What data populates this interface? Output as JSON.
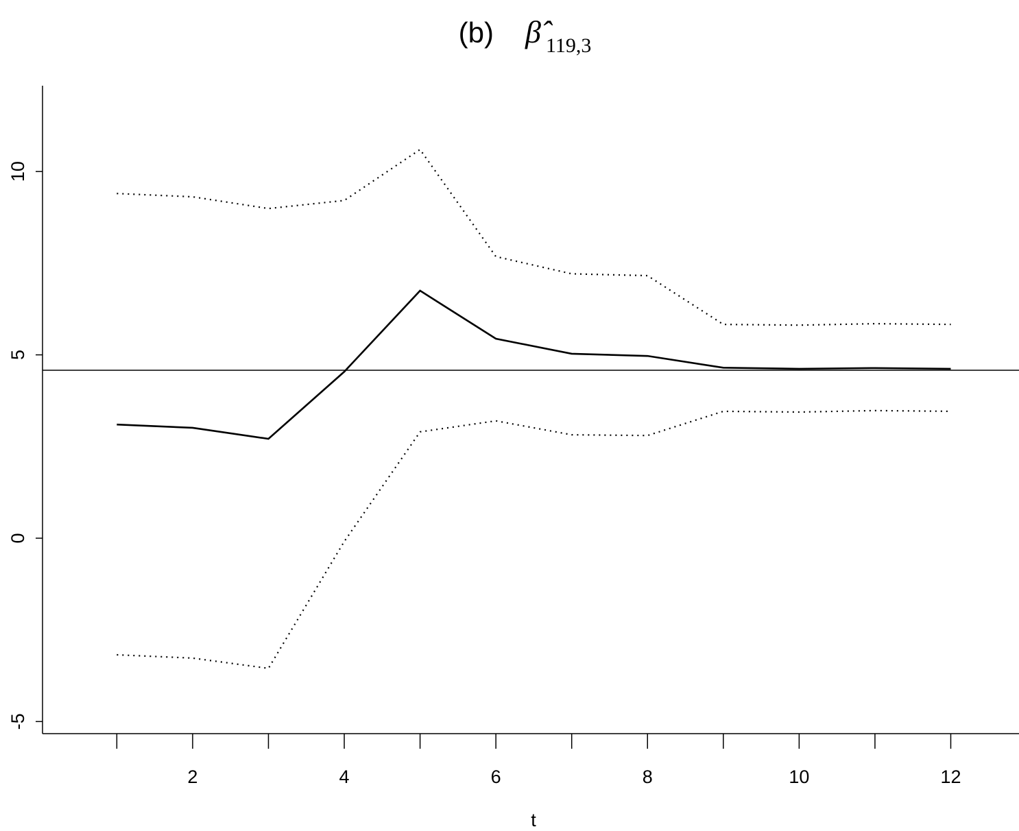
{
  "chart_data": {
    "type": "line",
    "title": "(b)",
    "title_symbol": "β̂",
    "title_subscript": "119,3",
    "x_label": "t",
    "x": [
      1,
      2,
      3,
      4,
      5,
      6,
      7,
      8,
      9,
      10,
      11,
      12
    ],
    "series": [
      {
        "color": "#000000",
        "style": "solid",
        "values": [
          3.1,
          3.01,
          2.71,
          4.54,
          6.75,
          5.44,
          5.03,
          4.97,
          4.65,
          4.62,
          4.64,
          4.62
        ]
      },
      {
        "color": "#000000",
        "style": "dotted",
        "values": [
          9.4,
          9.31,
          8.99,
          9.21,
          10.6,
          7.68,
          7.21,
          7.16,
          5.83,
          5.81,
          5.85,
          5.83
        ]
      },
      {
        "color": "#000000",
        "style": "dotted",
        "values": [
          -3.18,
          -3.27,
          -3.55,
          -0.09,
          2.9,
          3.2,
          2.82,
          2.8,
          3.46,
          3.44,
          3.48,
          3.46
        ]
      }
    ],
    "hline": 4.58,
    "xlim": [
      0.02,
      12.9
    ],
    "ylim": [
      -5.33,
      12.34
    ],
    "xticks": [
      2,
      4,
      6,
      8,
      10,
      12
    ],
    "xminor_ticks": [
      1,
      3,
      5,
      7,
      9,
      11
    ],
    "yticks": [
      -5,
      0,
      5,
      10
    ],
    "grid": false
  }
}
